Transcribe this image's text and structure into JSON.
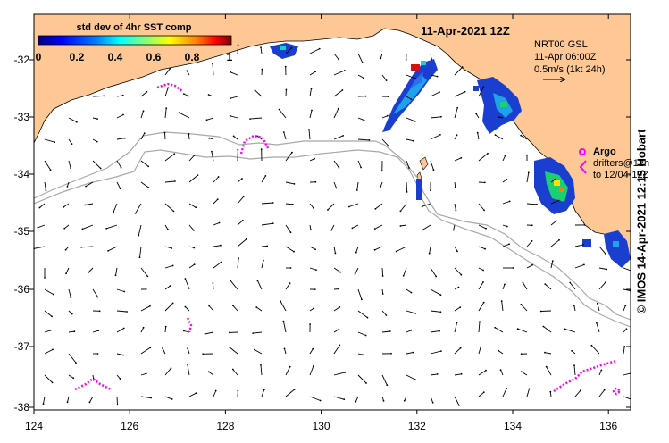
{
  "map": {
    "date_title": "11-Apr-2021 12Z",
    "colorbar": {
      "title": "std dev of 4hr SST comp",
      "ticks": [
        "0",
        "0.2",
        "0.4",
        "0.6",
        "0.8",
        "1"
      ],
      "range": [
        0,
        1
      ],
      "colors": [
        "#00007f",
        "#0000ff",
        "#007fff",
        "#00ffff",
        "#7fff7f",
        "#ffff00",
        "#ff7f00",
        "#ff0000",
        "#7f0000"
      ]
    },
    "current_legend": {
      "model": "NRT00 GSL",
      "time": "11-Apr 06:00Z",
      "scale": "0.5m/s (1kt 24h)"
    },
    "argo_legend": {
      "title": "Argo",
      "line1": "drifters@12h",
      "line2": "to 12/04-12Z"
    },
    "credit": "© IMOS 14-Apr-2021 12:15 Hobart",
    "lon_ticks": [
      "124",
      "126",
      "128",
      "130",
      "132",
      "134",
      "136"
    ],
    "lat_ticks": [
      "-32",
      "-33",
      "-34",
      "-35",
      "-36",
      "-37",
      "-38"
    ],
    "colors": {
      "land": "#fdc896",
      "ocean": "#ffffff",
      "argo": "#ff00ff",
      "isobath": "#a8a8a8"
    }
  }
}
